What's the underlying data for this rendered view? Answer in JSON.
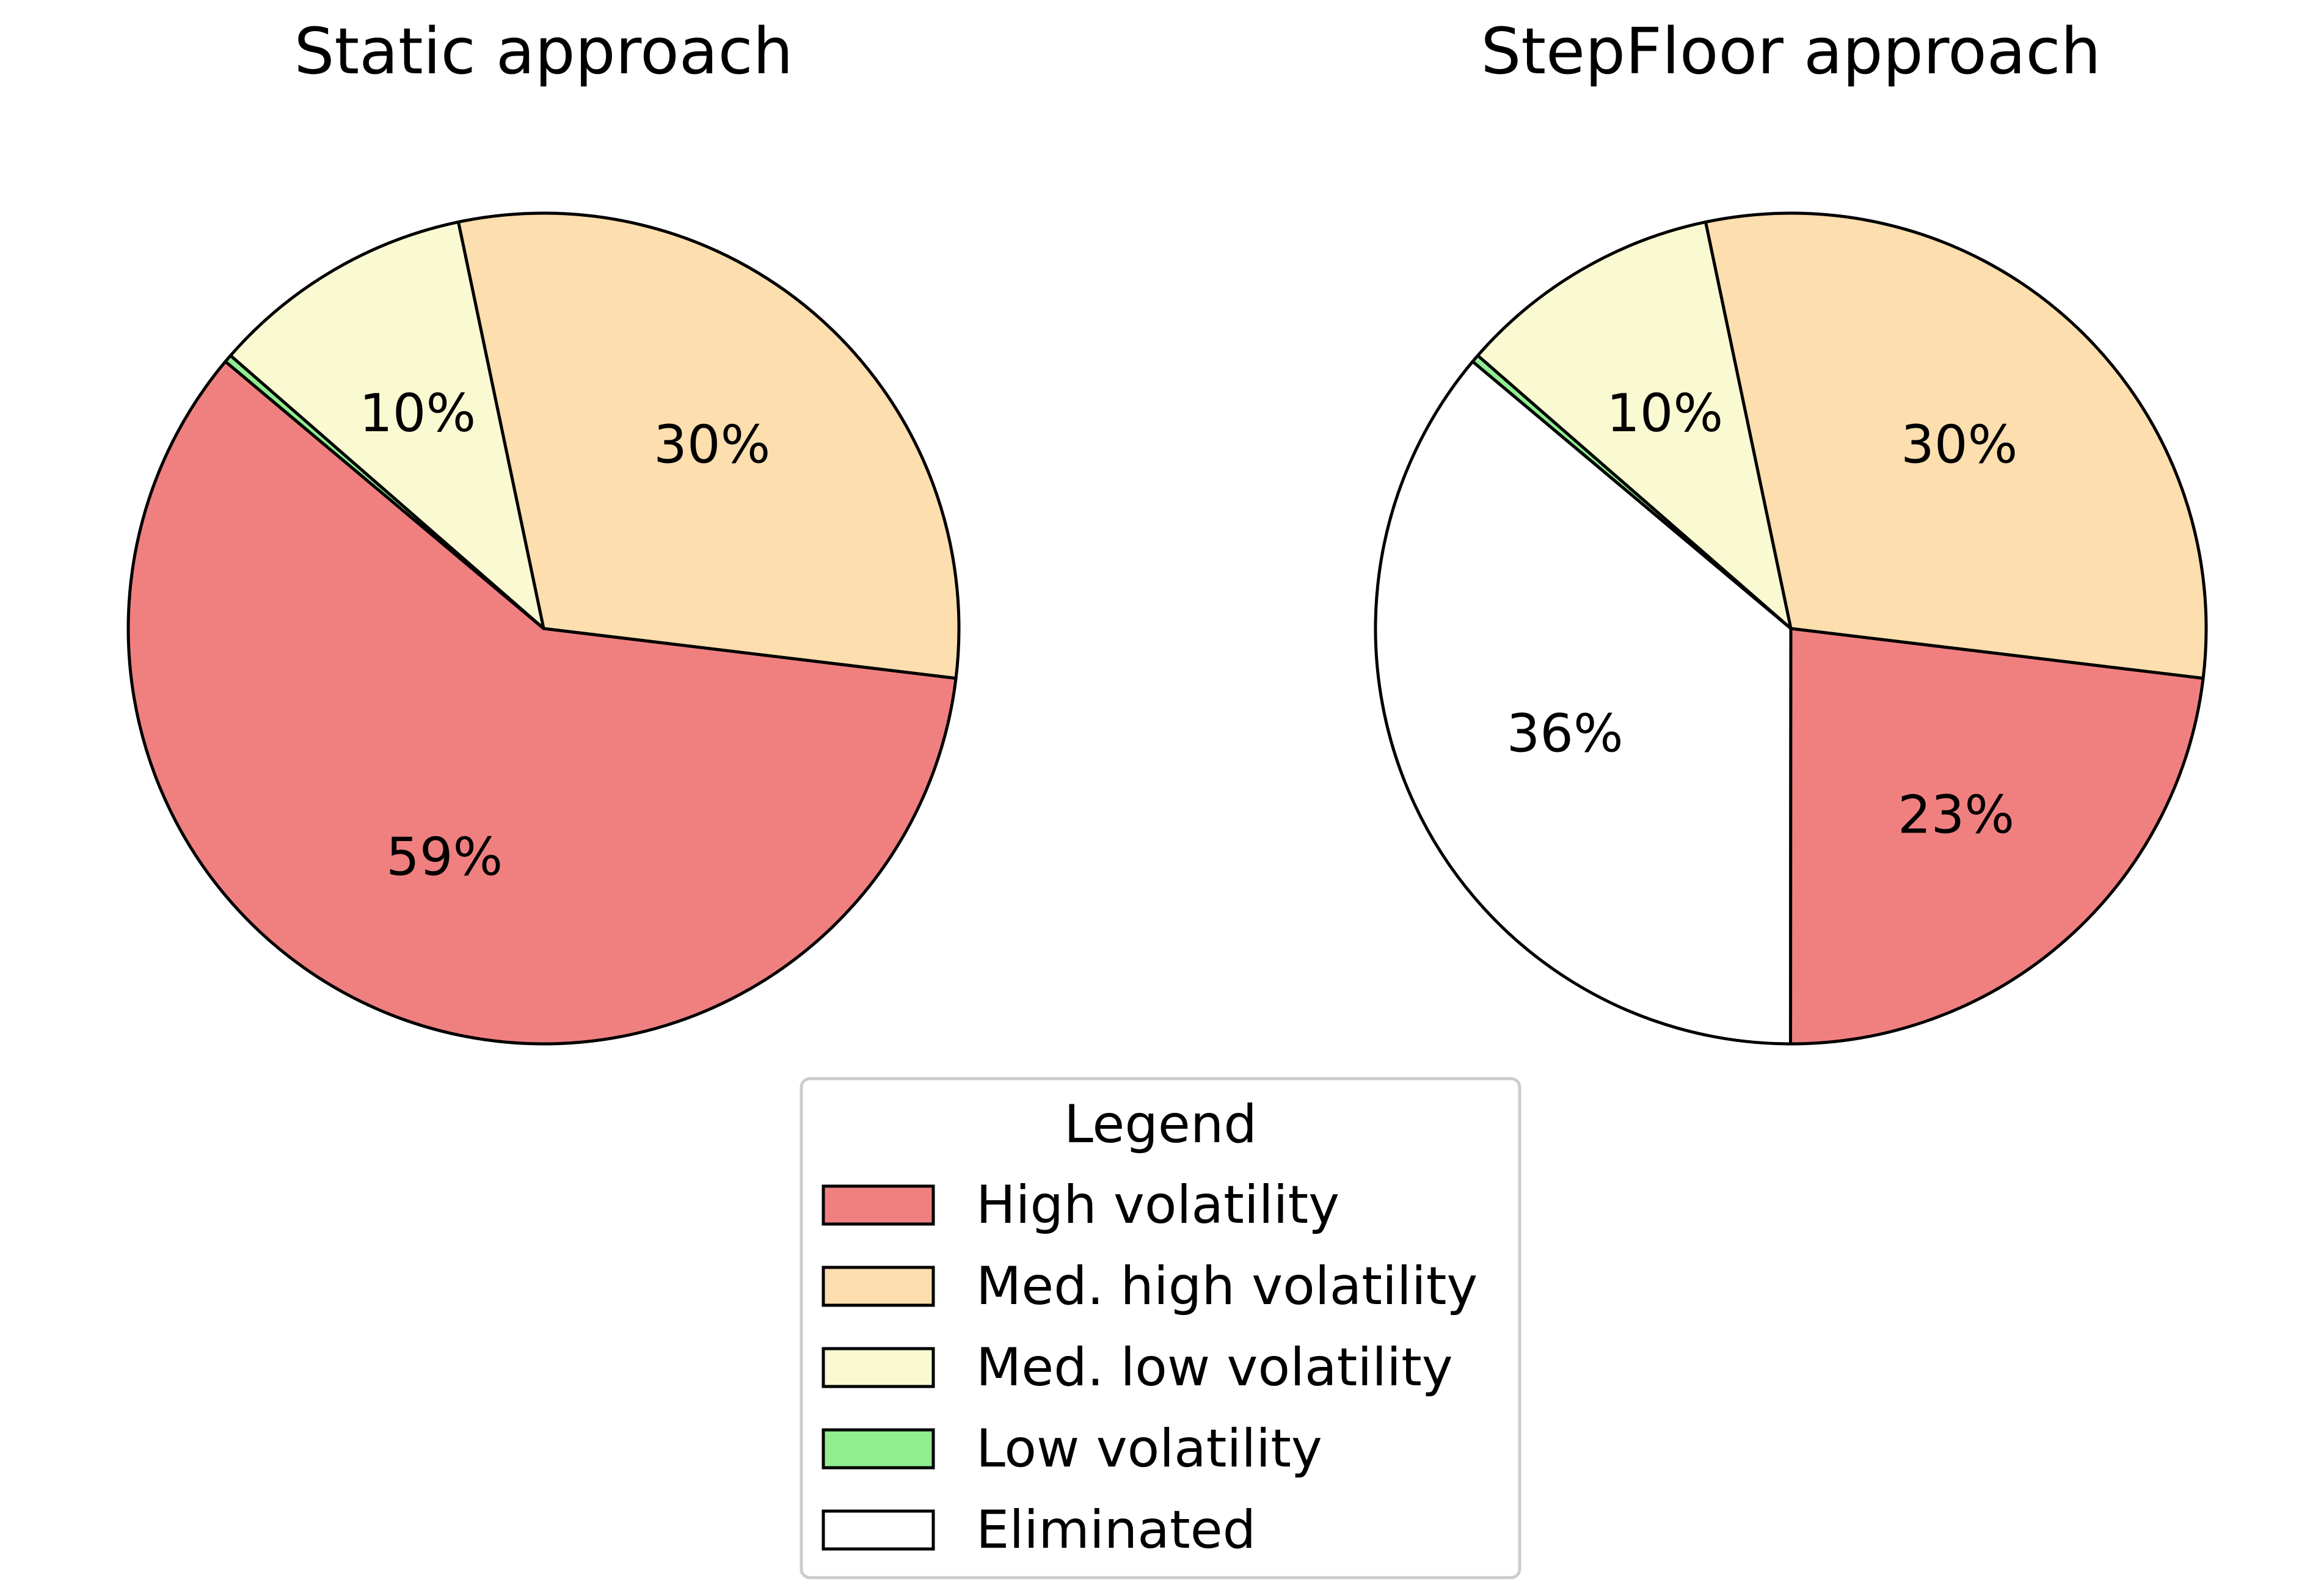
{
  "chart_data": [
    {
      "type": "pie",
      "title": "Static approach",
      "slices": [
        {
          "label": "High volatility",
          "value": 59.2,
          "pct_label": "59%",
          "color": "#f08080"
        },
        {
          "label": "Med. high volatility",
          "value": 30.2,
          "pct_label": "30%",
          "color": "#fddeae"
        },
        {
          "label": "Med. low volatility",
          "value": 10.3,
          "pct_label": "10%",
          "color": "#fafad2"
        },
        {
          "label": "Low volatility",
          "value": 0.3,
          "pct_label": "",
          "color": "#90ee90"
        }
      ]
    },
    {
      "type": "pie",
      "title": "StepFloor approach",
      "slices": [
        {
          "label": "Eliminated",
          "value": 36.1,
          "pct_label": "36%",
          "color": "#ffffff"
        },
        {
          "label": "High volatility",
          "value": 23.1,
          "pct_label": "23%",
          "color": "#f08080"
        },
        {
          "label": "Med. high volatility",
          "value": 30.2,
          "pct_label": "30%",
          "color": "#fddeae"
        },
        {
          "label": "Med. low volatility",
          "value": 10.3,
          "pct_label": "10%",
          "color": "#fafad2"
        },
        {
          "label": "Low volatility",
          "value": 0.3,
          "pct_label": "",
          "color": "#90ee90"
        }
      ]
    }
  ],
  "legend": {
    "title": "Legend",
    "placement": "bottom-center",
    "items": [
      {
        "label": "High volatility",
        "color": "#f08080"
      },
      {
        "label": "Med. high volatility",
        "color": "#fddeae"
      },
      {
        "label": "Med. low volatility",
        "color": "#fafad2"
      },
      {
        "label": "Low volatility",
        "color": "#90ee90"
      },
      {
        "label": "Eliminated",
        "color": "#ffffff"
      }
    ]
  }
}
